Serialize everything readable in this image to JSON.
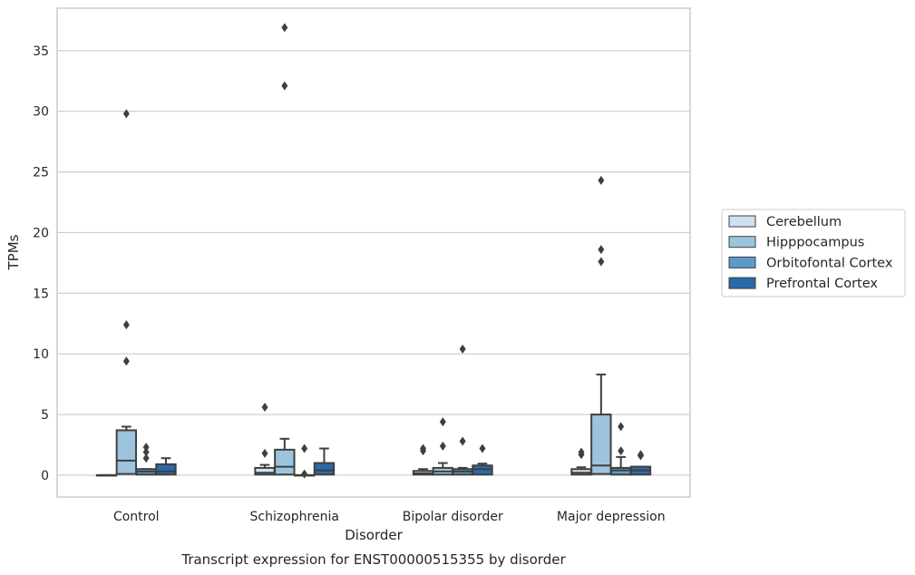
{
  "chart_data": {
    "type": "box",
    "xlabel": "Disorder",
    "ylabel": "TPMs",
    "caption": "Transcript expression for ENST00000515355 by disorder",
    "ylim": [
      -1.8,
      38.5
    ],
    "yticks": [
      0,
      5,
      10,
      15,
      20,
      25,
      30,
      35
    ],
    "grid": "horizontal",
    "legend_position": "right",
    "categories": [
      "Control",
      "Schizophrenia",
      "Bipolar disorder",
      "Major depression"
    ],
    "series": [
      {
        "name": "Cerebellum",
        "color": "#d0e0ef",
        "boxes": [
          {
            "q1": 0.0,
            "median": 0.0,
            "q3": 0.0,
            "whisker_low": 0.0,
            "whisker_high": 0.0,
            "outliers": []
          },
          {
            "q1": 0.05,
            "median": 0.2,
            "q3": 0.6,
            "whisker_low": 0.0,
            "whisker_high": 0.85,
            "outliers": [
              1.8,
              5.6
            ]
          },
          {
            "q1": 0.05,
            "median": 0.15,
            "q3": 0.35,
            "whisker_low": 0.0,
            "whisker_high": 0.5,
            "outliers": [
              2.0,
              2.2
            ]
          },
          {
            "q1": 0.05,
            "median": 0.2,
            "q3": 0.5,
            "whisker_low": 0.0,
            "whisker_high": 0.65,
            "outliers": [
              1.7,
              1.9
            ]
          }
        ]
      },
      {
        "name": "Hipppocampus",
        "color": "#9dc4de",
        "boxes": [
          {
            "q1": 0.1,
            "median": 1.2,
            "q3": 3.7,
            "whisker_low": 0.0,
            "whisker_high": 4.0,
            "outliers": [
              9.4,
              12.4,
              29.8
            ]
          },
          {
            "q1": 0.05,
            "median": 0.7,
            "q3": 2.1,
            "whisker_low": 0.0,
            "whisker_high": 3.0,
            "outliers": [
              32.1,
              36.9
            ]
          },
          {
            "q1": 0.05,
            "median": 0.3,
            "q3": 0.6,
            "whisker_low": 0.0,
            "whisker_high": 1.0,
            "outliers": [
              2.4,
              4.4
            ]
          },
          {
            "q1": 0.1,
            "median": 0.8,
            "q3": 5.0,
            "whisker_low": 0.0,
            "whisker_high": 8.3,
            "outliers": [
              17.6,
              18.6,
              24.3
            ]
          }
        ]
      },
      {
        "name": "Orbitofontal Cortex",
        "color": "#5b9bc8",
        "boxes": [
          {
            "q1": 0.05,
            "median": 0.3,
            "q3": 0.5,
            "whisker_low": 0.0,
            "whisker_high": 0.5,
            "outliers": [
              1.4,
              1.9,
              2.3
            ]
          },
          {
            "q1": 0.0,
            "median": 0.0,
            "q3": 0.0,
            "whisker_low": 0.0,
            "whisker_high": 0.0,
            "outliers": [
              0.1,
              2.2
            ]
          },
          {
            "q1": 0.05,
            "median": 0.3,
            "q3": 0.5,
            "whisker_low": 0.0,
            "whisker_high": 0.6,
            "outliers": [
              2.8,
              10.4
            ]
          },
          {
            "q1": 0.05,
            "median": 0.4,
            "q3": 0.6,
            "whisker_low": 0.0,
            "whisker_high": 1.5,
            "outliers": [
              2.0,
              4.0
            ]
          }
        ]
      },
      {
        "name": "Prefrontal Cortex",
        "color": "#2b6aa9",
        "boxes": [
          {
            "q1": 0.05,
            "median": 0.3,
            "q3": 0.9,
            "whisker_low": 0.0,
            "whisker_high": 1.4,
            "outliers": []
          },
          {
            "q1": 0.05,
            "median": 0.4,
            "q3": 1.0,
            "whisker_low": 0.0,
            "whisker_high": 2.2,
            "outliers": []
          },
          {
            "q1": 0.05,
            "median": 0.5,
            "q3": 0.8,
            "whisker_low": 0.0,
            "whisker_high": 0.95,
            "outliers": [
              2.2
            ]
          },
          {
            "q1": 0.05,
            "median": 0.4,
            "q3": 0.7,
            "whisker_low": 0.0,
            "whisker_high": 0.7,
            "outliers": [
              1.6,
              1.7
            ]
          }
        ]
      }
    ]
  }
}
